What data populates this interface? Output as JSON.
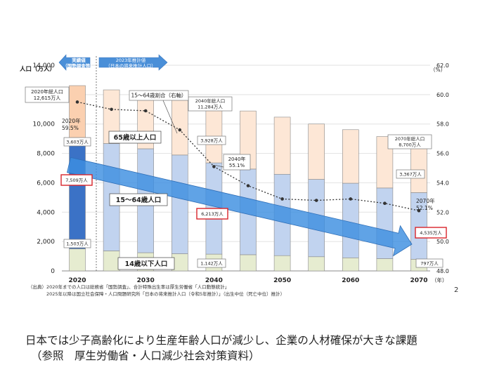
{
  "chart_data": {
    "type": "bar",
    "stacked": true,
    "categories": [
      "2020",
      "2025",
      "2030",
      "2035",
      "2040",
      "2045",
      "2050",
      "2055",
      "2060",
      "2065",
      "2070"
    ],
    "x_tick_labels": [
      "2020",
      "2030",
      "2040",
      "2050",
      "2060",
      "2070"
    ],
    "series": [
      {
        "name": "14歳以下人口",
        "values": [
          1503,
          1363,
          1240,
          1169,
          1142,
          1103,
          1041,
          966,
          893,
          836,
          797
        ]
      },
      {
        "name": "15〜64歳人口",
        "values": [
          7509,
          7310,
          7076,
          6722,
          6213,
          5832,
          5540,
          5268,
          5078,
          4809,
          4535
        ]
      },
      {
        "name": "65歳以上人口",
        "values": [
          3603,
          3653,
          3696,
          3773,
          3928,
          3953,
          3888,
          3767,
          3644,
          3505,
          3367
        ]
      }
    ],
    "line_series": {
      "name": "15〜64歳割合（右軸）",
      "values": [
        59.5,
        59.0,
        58.9,
        57.6,
        55.1,
        53.8,
        52.9,
        52.8,
        52.9,
        52.6,
        52.1
      ]
    },
    "ylim": [
      0,
      14000
    ],
    "y_ticks": [
      "0",
      "2,000",
      "4,000",
      "6,000",
      "8,000",
      "10,000",
      "12,000",
      "14,000"
    ],
    "y2lim": [
      48.0,
      62.0
    ],
    "y2_ticks": [
      "48.0",
      "50.0",
      "52.0",
      "54.0",
      "56.0",
      "58.0",
      "60.0",
      "62.0"
    ],
    "ylabel": "人口（万人）",
    "y2label": "（%）",
    "xunit": "（年）",
    "colors": {
      "young": "#e6ecd0",
      "working": "#c1d3ef",
      "working_2020": "#3b72c6",
      "old": "#fde7d6",
      "old_2020": "#fbd0b0",
      "line": "#333333",
      "arrow": "#3d8fe0",
      "header_arrow": "#4a8fd8",
      "highlight_box": "#d9242a"
    },
    "annotations": {
      "actual_header": [
        "実績値",
        "（国勢調査等）"
      ],
      "estimate_header": [
        "2023年推計値",
        "（日本の将来推計人口）"
      ],
      "total_2020": [
        "2020年総人口",
        "12,615万人"
      ],
      "total_2040": [
        "2040年総人口",
        "11,284万人"
      ],
      "total_2070": [
        "2070年総人口",
        "8,700万人"
      ],
      "ratio_2020": [
        "2020年",
        "59.5%"
      ],
      "ratio_2040": [
        "2040年",
        "55.1%"
      ],
      "ratio_2070": [
        "2070年",
        "52.1%"
      ],
      "line_label": "15〜64歳割合（右軸）",
      "old_label": "65歳以上人口",
      "working_label": "15〜64歳人口",
      "young_label": "14歳以下人口",
      "old_2020": "3,603万人",
      "working_2020": "7,509万人",
      "young_2020": "1,503万人",
      "old_2040": "3,928万人",
      "working_2040": "6,213万人",
      "young_2040": "1,142万人",
      "old_2070": "3,367万人",
      "working_2070": "4,535万人",
      "young_2070": "797万人"
    }
  },
  "source_lines": [
    "（出典）2020年までの人口は総務省「国勢調査」、合計特殊出生率は厚生労働省「人口動態統計」",
    "　　　　2025年以降は国立社会保障・人口問題研究所「日本の将来推計人口（令和5年推計）」（出生中位（死亡中位）推計）"
  ],
  "page_number": "2",
  "caption_line1": "日本では少子高齢化により生産年齢人口が減少し、企業の人材確保が大きな課題",
  "caption_line2": "（参照　厚生労働省・人口減少社会対策資料）"
}
